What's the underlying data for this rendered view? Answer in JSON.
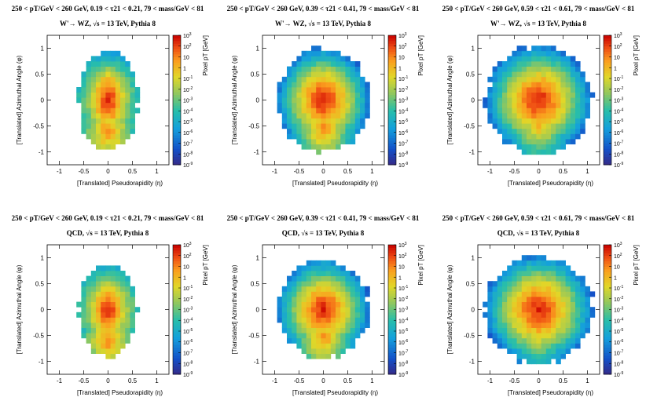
{
  "chart_data": [
    {
      "type": "heatmap",
      "title_line1": "250 < pT/GeV < 260 GeV, 0.19 < τ21 < 0.21, 79 < mass/GeV < 81",
      "title_line2": "W'→ WZ,  √s = 13 TeV, Pythia 8",
      "xlabel": "[Translated] Pseudorapidity (η)",
      "ylabel": "[Translated] Azimuthal Angle (φ)",
      "zlabel": "Pixel pT [GeV]",
      "xlim": [
        -1.25,
        1.25
      ],
      "ylim": [
        -1.25,
        1.25
      ],
      "x_ticks": [
        "-1",
        "-0.5",
        "0",
        "0.5",
        "1"
      ],
      "y_ticks": [
        "-1",
        "-0.5",
        "0",
        "0.5",
        "1"
      ],
      "z_ticks": [
        "10^-9",
        "10^-8",
        "10^-7",
        "10^-6",
        "10^-5",
        "10^-4",
        "10^-3",
        "10^-2",
        "10^-1",
        "1",
        "10",
        "10^2",
        "10^3"
      ],
      "zlim_log10": [
        -9,
        3
      ],
      "shape": {
        "sx": 0.62,
        "sy": 0.98,
        "peak_upper_y": 0.03,
        "peak_lower_y": -0.6,
        "peak_log10": 1.8,
        "second_peak_log10": 1.2
      }
    },
    {
      "type": "heatmap",
      "title_line1": "250 < pT/GeV < 260 GeV, 0.39 < τ21 < 0.41, 79 < mass/GeV < 81",
      "title_line2": "W'→ WZ,  √s = 13 TeV, Pythia 8",
      "xlabel": "[Translated] Pseudorapidity (η)",
      "ylabel": "[Translated] Azimuthal Angle (φ)",
      "zlabel": "Pixel pT [GeV]",
      "xlim": [
        -1.25,
        1.25
      ],
      "ylim": [
        -1.25,
        1.25
      ],
      "x_ticks": [
        "-1",
        "-0.5",
        "0",
        "0.5",
        "1"
      ],
      "y_ticks": [
        "-1",
        "-0.5",
        "0",
        "0.5",
        "1"
      ],
      "z_ticks": [
        "10^-9",
        "10^-8",
        "10^-7",
        "10^-6",
        "10^-5",
        "10^-4",
        "10^-3",
        "10^-2",
        "10^-1",
        "1",
        "10",
        "10^2",
        "10^3"
      ],
      "zlim_log10": [
        -9,
        3
      ],
      "shape": {
        "sx": 0.95,
        "sy": 1.0,
        "peak_upper_y": 0.03,
        "peak_lower_y": -0.55,
        "peak_log10": 1.7,
        "second_peak_log10": 1.1
      }
    },
    {
      "type": "heatmap",
      "title_line1": "250 < pT/GeV < 260 GeV, 0.59 < τ21 < 0.61, 79 < mass/GeV < 81",
      "title_line2": "W'→ WZ,  √s = 13 TeV, Pythia 8",
      "xlabel": "[Translated] Pseudorapidity (η)",
      "ylabel": "[Translated] Azimuthal Angle (φ)",
      "zlabel": "Pixel pT [GeV]",
      "xlim": [
        -1.25,
        1.25
      ],
      "ylim": [
        -1.25,
        1.25
      ],
      "x_ticks": [
        "-1",
        "-0.5",
        "0",
        "0.5",
        "1"
      ],
      "y_ticks": [
        "-1",
        "-0.5",
        "0",
        "0.5",
        "1"
      ],
      "z_ticks": [
        "10^-9",
        "10^-8",
        "10^-7",
        "10^-6",
        "10^-5",
        "10^-4",
        "10^-3",
        "10^-2",
        "10^-1",
        "1",
        "10",
        "10^2",
        "10^3"
      ],
      "zlim_log10": [
        -9,
        3
      ],
      "shape": {
        "sx": 1.08,
        "sy": 1.05,
        "peak_upper_y": 0.0,
        "peak_lower_y": -0.45,
        "peak_log10": 1.6,
        "second_peak_log10": 0.6
      }
    },
    {
      "type": "heatmap",
      "title_line1": "250 < pT/GeV < 260 GeV, 0.19 < τ21 < 0.21, 79 < mass/GeV < 81",
      "title_line2": "QCD,  √s = 13 TeV, Pythia 8",
      "xlabel": "[Translated] Pseudorapidity (η)",
      "ylabel": "[Translated] Azimuthal Angle (φ)",
      "zlabel": "Pixel pT [GeV]",
      "xlim": [
        -1.25,
        1.25
      ],
      "ylim": [
        -1.25,
        1.25
      ],
      "x_ticks": [
        "-1",
        "-0.5",
        "0",
        "0.5",
        "1"
      ],
      "y_ticks": [
        "-1",
        "-0.5",
        "0",
        "0.5",
        "1"
      ],
      "z_ticks": [
        "10^-9",
        "10^-8",
        "10^-7",
        "10^-6",
        "10^-5",
        "10^-4",
        "10^-3",
        "10^-2",
        "10^-1",
        "1",
        "10",
        "10^2",
        "10^3"
      ],
      "zlim_log10": [
        -9,
        3
      ],
      "shape": {
        "sx": 0.6,
        "sy": 0.9,
        "peak_upper_y": 0.0,
        "peak_lower_y": -0.6,
        "peak_log10": 1.9,
        "second_peak_log10": 1.2
      }
    },
    {
      "type": "heatmap",
      "title_line1": "250 < pT/GeV < 260 GeV, 0.39 < τ21 < 0.41, 79 < mass/GeV < 81",
      "title_line2": "QCD,  √s = 13 TeV, Pythia 8",
      "xlabel": "[Translated] Pseudorapidity (η)",
      "ylabel": "[Translated] Azimuthal Angle (φ)",
      "zlabel": "Pixel pT [GeV]",
      "xlim": [
        -1.25,
        1.25
      ],
      "ylim": [
        -1.25,
        1.25
      ],
      "x_ticks": [
        "-1",
        "-0.5",
        "0",
        "0.5",
        "1"
      ],
      "y_ticks": [
        "-1",
        "-0.5",
        "0",
        "0.5",
        "1"
      ],
      "z_ticks": [
        "10^-9",
        "10^-8",
        "10^-7",
        "10^-6",
        "10^-5",
        "10^-4",
        "10^-3",
        "10^-2",
        "10^-1",
        "1",
        "10",
        "10^2",
        "10^3"
      ],
      "zlim_log10": [
        -9,
        3
      ],
      "shape": {
        "sx": 0.95,
        "sy": 0.95,
        "peak_upper_y": 0.0,
        "peak_lower_y": -0.55,
        "peak_log10": 1.8,
        "second_peak_log10": 1.0
      }
    },
    {
      "type": "heatmap",
      "title_line1": "250 < pT/GeV < 260 GeV, 0.59 < τ21 < 0.61, 79 < mass/GeV < 81",
      "title_line2": "QCD,  √s = 13 TeV, Pythia 8",
      "xlabel": "[Translated] Pseudorapidity (η)",
      "ylabel": "[Translated] Azimuthal Angle (φ)",
      "zlabel": "Pixel pT [GeV]",
      "xlim": [
        -1.25,
        1.25
      ],
      "ylim": [
        -1.25,
        1.25
      ],
      "x_ticks": [
        "-1",
        "-0.5",
        "0",
        "0.5",
        "1"
      ],
      "y_ticks": [
        "-1",
        "-0.5",
        "0",
        "0.5",
        "1"
      ],
      "z_ticks": [
        "10^-9",
        "10^-8",
        "10^-7",
        "10^-6",
        "10^-5",
        "10^-4",
        "10^-3",
        "10^-2",
        "10^-1",
        "1",
        "10",
        "10^2",
        "10^3"
      ],
      "zlim_log10": [
        -9,
        3
      ],
      "shape": {
        "sx": 1.1,
        "sy": 1.05,
        "peak_upper_y": 0.0,
        "peak_lower_y": -0.4,
        "peak_log10": 1.8,
        "second_peak_log10": 0.3
      }
    }
  ]
}
